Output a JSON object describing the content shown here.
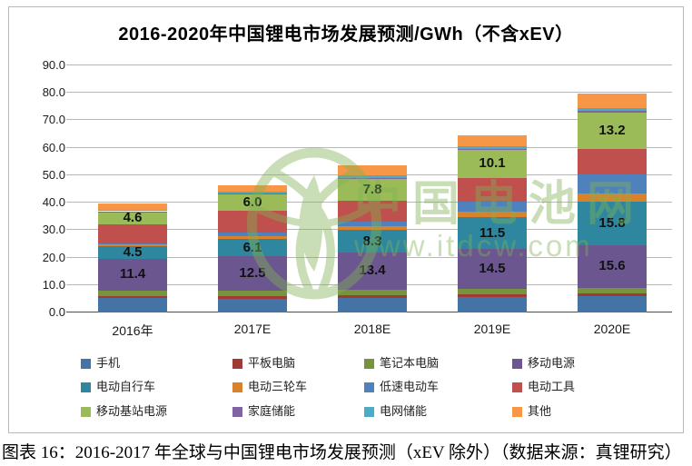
{
  "caption": "图表 16：2016-2017 年全球与中国锂电市场发展预测（xEV 除外）（数据来源：真锂研究）",
  "watermark": {
    "brand": "中国电池网",
    "url": "www.itdcw.com"
  },
  "chart_data": {
    "type": "bar",
    "stacked": true,
    "title": "2016-2020年中国锂电市场发展预测/GWh（不含xEV）",
    "unit": "GWh",
    "ylim": [
      0,
      90
    ],
    "ytick_step": 10,
    "ytick_labels": [
      "0.0",
      "10.0",
      "20.0",
      "30.0",
      "40.0",
      "50.0",
      "60.0",
      "70.0",
      "80.0",
      "90.0"
    ],
    "grid": true,
    "legend_position": "bottom",
    "categories": [
      "2016年",
      "2017E",
      "2018E",
      "2019E",
      "2020E"
    ],
    "series": [
      {
        "name": "手机",
        "color": "#4473A5",
        "values": [
          5.2,
          5.1,
          5.4,
          5.7,
          6.0
        ],
        "show_labels": false
      },
      {
        "name": "平板电脑",
        "color": "#9E3B36",
        "values": [
          0.9,
          0.9,
          0.9,
          0.9,
          0.9
        ],
        "show_labels": false
      },
      {
        "name": "笔记本电脑",
        "color": "#77933C",
        "values": [
          2.0,
          2.1,
          2.1,
          2.1,
          2.1
        ],
        "show_labels": false
      },
      {
        "name": "移动电源",
        "color": "#6B5690",
        "values": [
          11.4,
          12.5,
          13.4,
          14.5,
          15.6
        ],
        "show_labels": true
      },
      {
        "name": "电动自行车",
        "color": "#2F879F",
        "values": [
          4.5,
          6.1,
          8.3,
          11.5,
          15.8
        ],
        "show_labels": true
      },
      {
        "name": "电动三轮车",
        "color": "#D9822B",
        "values": [
          0.7,
          1.0,
          1.5,
          2.1,
          2.9
        ],
        "show_labels": false
      },
      {
        "name": "低速电动车",
        "color": "#4F81BD",
        "values": [
          0.6,
          1.3,
          1.6,
          3.7,
          7.0
        ],
        "show_labels": false
      },
      {
        "name": "电动工具",
        "color": "#C0504D",
        "values": [
          6.9,
          8.0,
          7.6,
          8.6,
          9.3
        ],
        "show_labels": false
      },
      {
        "name": "移动基站电源",
        "color": "#9BBB59",
        "values": [
          4.6,
          6.0,
          7.8,
          10.1,
          13.2
        ],
        "show_labels": true
      },
      {
        "name": "家庭储能",
        "color": "#8064A2",
        "values": [
          0.1,
          0.2,
          0.3,
          0.4,
          0.5
        ],
        "show_labels": false
      },
      {
        "name": "电网储能",
        "color": "#4BACC6",
        "values": [
          0.6,
          0.8,
          1.0,
          1.0,
          1.0
        ],
        "show_labels": false
      },
      {
        "name": "其他",
        "color": "#F79646",
        "values": [
          2.3,
          2.4,
          3.6,
          4.0,
          5.5
        ],
        "show_labels": false
      }
    ]
  }
}
